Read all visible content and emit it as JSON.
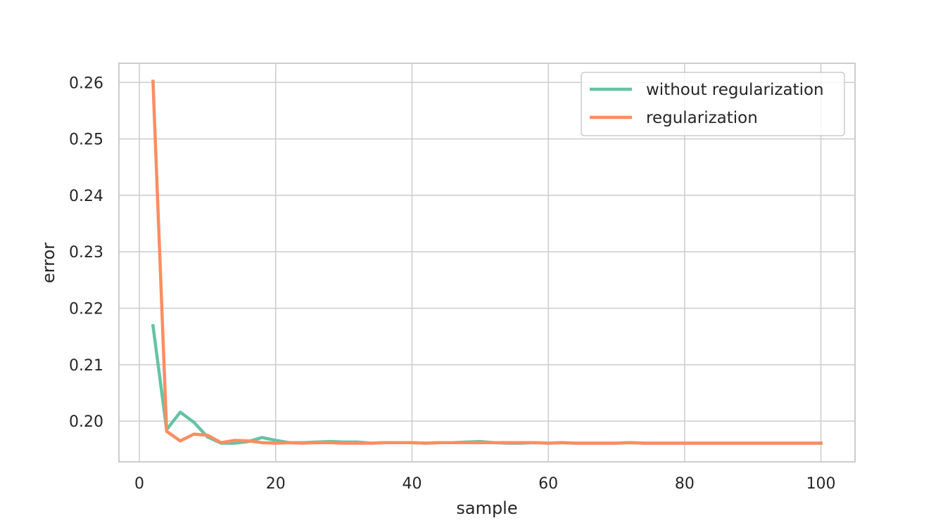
{
  "chart_data": {
    "type": "line",
    "title": "",
    "xlabel": "sample",
    "ylabel": "error",
    "xlim": [
      -3,
      105
    ],
    "ylim": [
      0.1928,
      0.2634
    ],
    "xticks": [
      0,
      20,
      40,
      60,
      80,
      100
    ],
    "xtick_labels": [
      "0",
      "20",
      "40",
      "60",
      "80",
      "100"
    ],
    "yticks": [
      0.2,
      0.21,
      0.22,
      0.23,
      0.24,
      0.25,
      0.26
    ],
    "ytick_labels": [
      "0.20",
      "0.21",
      "0.22",
      "0.23",
      "0.24",
      "0.25",
      "0.26"
    ],
    "grid": true,
    "legend_position": "top-right",
    "x": [
      2,
      4,
      6,
      8,
      10,
      12,
      14,
      16,
      18,
      20,
      22,
      24,
      26,
      28,
      30,
      32,
      34,
      36,
      38,
      40,
      42,
      44,
      46,
      48,
      50,
      52,
      54,
      56,
      58,
      60,
      62,
      64,
      66,
      68,
      70,
      72,
      74,
      76,
      78,
      80,
      82,
      84,
      86,
      88,
      90,
      92,
      94,
      96,
      98,
      100
    ],
    "series": [
      {
        "name": "without regularization",
        "color": "#66c2a5",
        "values": [
          0.2169,
          0.1985,
          0.2016,
          0.1998,
          0.1972,
          0.1961,
          0.1961,
          0.1964,
          0.1971,
          0.1966,
          0.1962,
          0.1962,
          0.1963,
          0.1964,
          0.1963,
          0.1963,
          0.1961,
          0.1962,
          0.1962,
          0.1962,
          0.1961,
          0.1962,
          0.1962,
          0.1963,
          0.1964,
          0.1962,
          0.1961,
          0.1961,
          0.1962,
          0.1961,
          0.1962,
          0.1961,
          0.1961,
          0.1961,
          0.1961,
          0.1962,
          0.1961,
          0.1961,
          0.1961,
          0.1961,
          0.1961,
          0.1961,
          0.1961,
          0.1961,
          0.1961,
          0.1961,
          0.1961,
          0.1961,
          0.1961,
          0.1961
        ]
      },
      {
        "name": "regularization",
        "color": "#fc8d62",
        "values": [
          0.2602,
          0.1982,
          0.1965,
          0.1977,
          0.1975,
          0.1962,
          0.1966,
          0.1965,
          0.1962,
          0.1961,
          0.1962,
          0.1961,
          0.1962,
          0.1962,
          0.1961,
          0.1961,
          0.1961,
          0.1962,
          0.1962,
          0.1962,
          0.1961,
          0.1962,
          0.1962,
          0.1962,
          0.1962,
          0.1962,
          0.1962,
          0.1962,
          0.1962,
          0.1961,
          0.1962,
          0.1961,
          0.1961,
          0.1961,
          0.1961,
          0.1962,
          0.1961,
          0.1961,
          0.1961,
          0.1961,
          0.1961,
          0.1961,
          0.1961,
          0.1961,
          0.1961,
          0.1961,
          0.1961,
          0.1961,
          0.1961,
          0.1961
        ]
      }
    ]
  }
}
